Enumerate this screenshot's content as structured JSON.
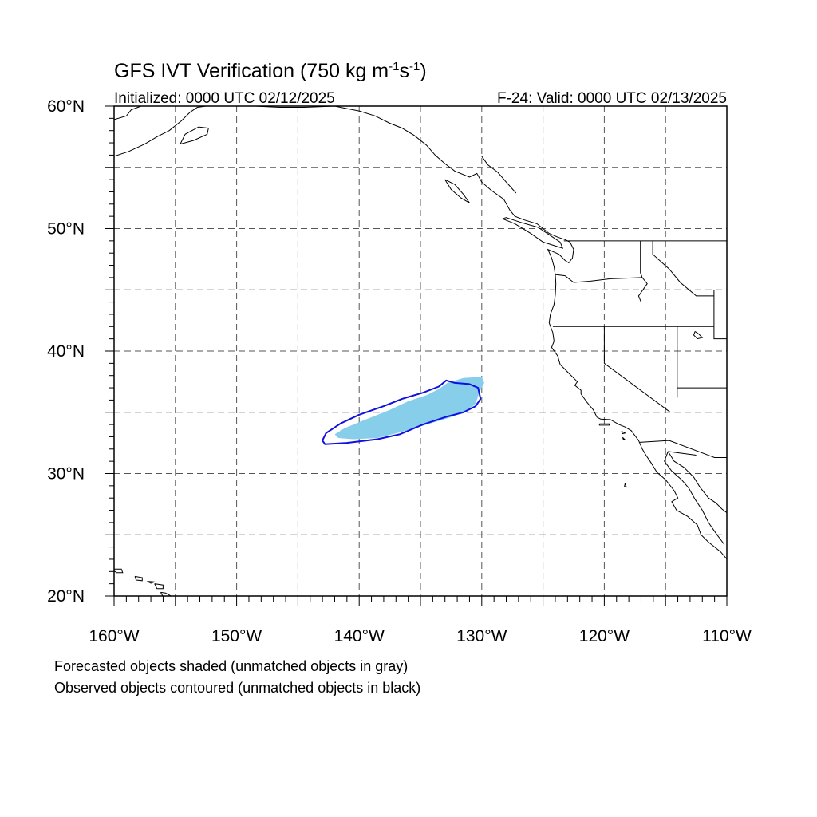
{
  "header": {
    "title_main": "GFS IVT Verification (750 kg m",
    "title_sup1": "-1",
    "title_mid": "s",
    "title_sup2": "-1",
    "title_end": ")",
    "initialized": "Initialized: 0000 UTC 02/12/2025",
    "valid": "F-24: Valid: 0000 UTC 02/13/2025"
  },
  "map": {
    "projection": "cylindrical-equidistant",
    "lon_range": [
      -160,
      -110
    ],
    "lat_range": [
      20,
      60
    ],
    "gridlines": "dashed every 5 degrees",
    "x_tick_labels": [
      "160°W",
      "150°W",
      "140°W",
      "130°W",
      "120°W",
      "110°W"
    ],
    "y_tick_labels": [
      "60°N",
      "50°N",
      "40°N",
      "30°N",
      "20°N"
    ],
    "colors": {
      "coastline": "#000000",
      "forecast_fill": "#87ceeb",
      "observed_contour": "#1010e0",
      "grid": "#555555"
    }
  },
  "chart_data": {
    "type": "map",
    "forecast_object": {
      "style": "shaded",
      "matched": true,
      "polygon_lonlat": [
        [
          -142.0,
          33.2
        ],
        [
          -141.2,
          33.7
        ],
        [
          -139.5,
          34.4
        ],
        [
          -137.5,
          35.2
        ],
        [
          -136.0,
          35.9
        ],
        [
          -134.5,
          36.4
        ],
        [
          -133.5,
          36.9
        ],
        [
          -132.8,
          37.4
        ],
        [
          -131.5,
          37.8
        ],
        [
          -130.0,
          37.9
        ],
        [
          -129.8,
          37.4
        ],
        [
          -130.2,
          36.6
        ],
        [
          -130.5,
          35.7
        ],
        [
          -131.2,
          35.1
        ],
        [
          -132.5,
          34.6
        ],
        [
          -134.5,
          34.0
        ],
        [
          -136.5,
          33.4
        ],
        [
          -138.5,
          32.9
        ],
        [
          -140.5,
          32.8
        ],
        [
          -141.7,
          32.9
        ]
      ]
    },
    "observed_object": {
      "style": "contour",
      "matched": true,
      "polygon_lonlat": [
        [
          -143.0,
          32.7
        ],
        [
          -142.7,
          33.3
        ],
        [
          -141.5,
          34.1
        ],
        [
          -140.0,
          34.8
        ],
        [
          -138.0,
          35.5
        ],
        [
          -136.5,
          36.1
        ],
        [
          -134.8,
          36.6
        ],
        [
          -133.5,
          37.1
        ],
        [
          -132.9,
          37.6
        ],
        [
          -132.2,
          37.4
        ],
        [
          -131.0,
          37.3
        ],
        [
          -130.3,
          37.0
        ],
        [
          -130.1,
          36.1
        ],
        [
          -130.5,
          35.5
        ],
        [
          -131.5,
          35.0
        ],
        [
          -133.0,
          34.6
        ],
        [
          -134.8,
          34.0
        ],
        [
          -136.7,
          33.2
        ],
        [
          -138.5,
          32.8
        ],
        [
          -141.0,
          32.5
        ],
        [
          -142.8,
          32.4
        ]
      ]
    }
  },
  "footnotes": {
    "line1": "Forecasted objects shaded (unmatched objects in gray)",
    "line2": "Observed objects contoured (unmatched objects in black)"
  }
}
